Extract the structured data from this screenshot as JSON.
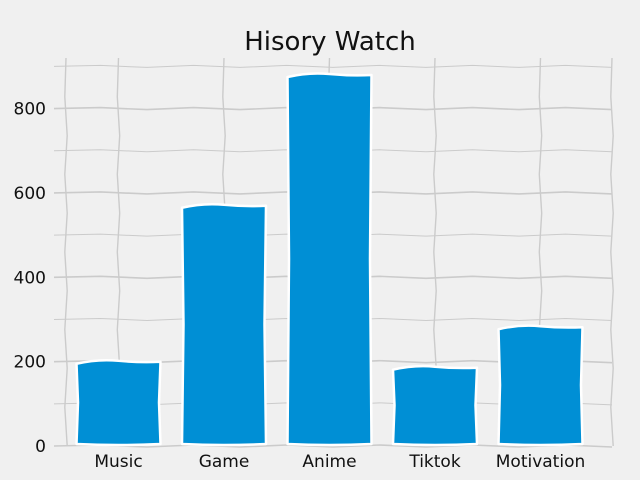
{
  "chart_data": {
    "type": "bar",
    "title": "Hisory Watch",
    "xlabel": "",
    "ylabel": "",
    "categories": [
      "Music",
      "Game",
      "Anime",
      "Tiktok",
      "Motivation"
    ],
    "values": [
      202,
      572,
      882,
      188,
      284
    ],
    "ylim": [
      0,
      920
    ],
    "yticks": [
      0,
      200,
      400,
      600,
      800
    ],
    "grid": true,
    "bar_color": "#008fd5",
    "background_color": "#f0f0f0",
    "grid_color": "#cbcbcb"
  }
}
